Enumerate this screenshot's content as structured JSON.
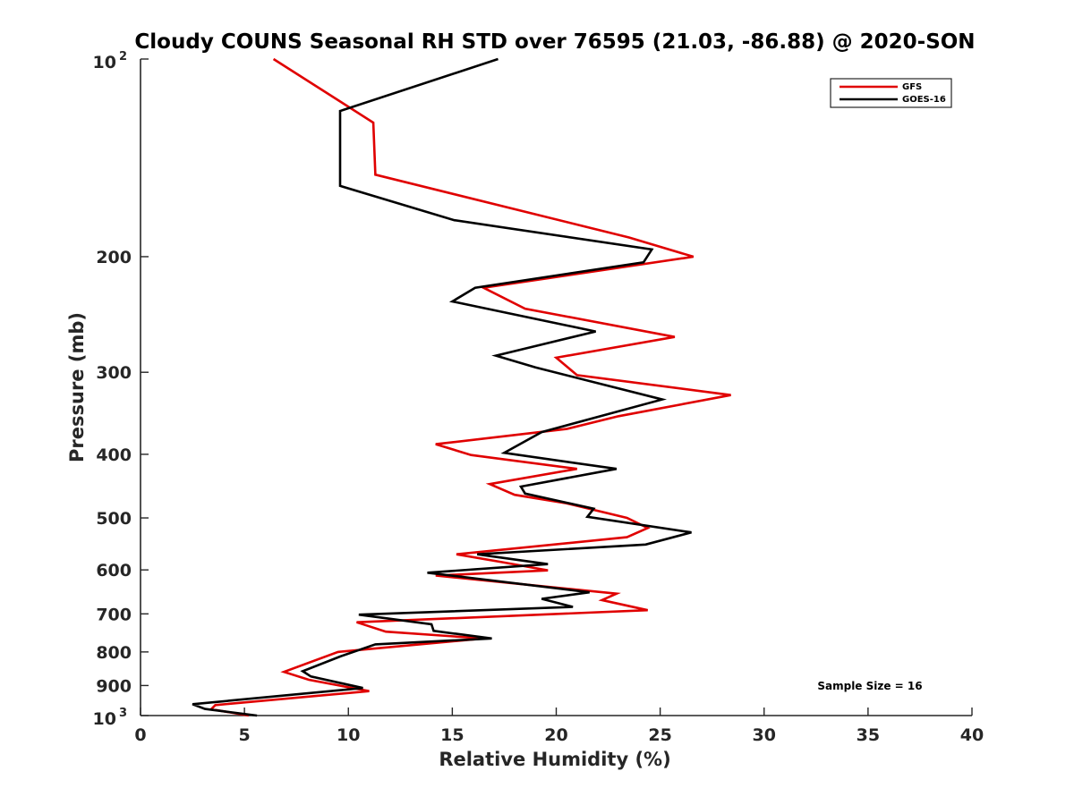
{
  "chart_data": {
    "type": "line",
    "title": "Cloudy COUNS Seasonal RH STD over 76595 (21.03, -86.88) @ 2020-SON",
    "xlabel": "Relative Humidity (%)",
    "ylabel": "Pressure (mb)",
    "xlim": [
      0,
      40
    ],
    "ylim": [
      100,
      1000
    ],
    "yscale": "log",
    "y_reversed": true,
    "xticks": [
      0,
      5,
      10,
      15,
      20,
      25,
      30,
      35,
      40
    ],
    "xtick_labels": [
      "0",
      "5",
      "10",
      "15",
      "20",
      "25",
      "30",
      "35",
      "40"
    ],
    "yticks": [
      200,
      300,
      400,
      500,
      600,
      700,
      800,
      900
    ],
    "ytick_labels": [
      "200",
      "300",
      "400",
      "500",
      "600",
      "700",
      "800",
      "900"
    ],
    "ytick_top": {
      "value": 100,
      "base": "10",
      "exp": "2"
    },
    "ytick_bottom": {
      "value": 1000,
      "base": "10",
      "exp": "3"
    },
    "legend": {
      "position": "top-right"
    },
    "annotation": "Sample Size = 16",
    "series": [
      {
        "name": "GFS",
        "color": "#e00000",
        "points": [
          [
            6.4,
            100
          ],
          [
            11.2,
            125
          ],
          [
            11.3,
            150
          ],
          [
            23.5,
            187
          ],
          [
            26.6,
            200
          ],
          [
            16.5,
            223
          ],
          [
            18.5,
            240
          ],
          [
            25.7,
            265
          ],
          [
            20.0,
            285
          ],
          [
            21.0,
            303
          ],
          [
            28.4,
            325
          ],
          [
            23.0,
            350
          ],
          [
            20.5,
            366
          ],
          [
            14.2,
            386
          ],
          [
            15.9,
            401
          ],
          [
            21.0,
            421
          ],
          [
            16.8,
            444
          ],
          [
            18.0,
            461
          ],
          [
            20.5,
            475
          ],
          [
            23.4,
            500
          ],
          [
            24.4,
            518
          ],
          [
            23.4,
            535
          ],
          [
            15.2,
            568
          ],
          [
            17.4,
            584
          ],
          [
            19.6,
            601
          ],
          [
            14.2,
            612
          ],
          [
            22.9,
            652
          ],
          [
            22.2,
            667
          ],
          [
            24.4,
            691
          ],
          [
            10.4,
            721
          ],
          [
            11.8,
            745
          ],
          [
            16.5,
            763
          ],
          [
            9.5,
            800
          ],
          [
            6.9,
            858
          ],
          [
            8.1,
            882
          ],
          [
            11.0,
            918
          ],
          [
            3.6,
            964
          ],
          [
            3.4,
            978
          ],
          [
            5.2,
            1000
          ]
        ]
      },
      {
        "name": "GOES-16",
        "color": "#000000",
        "points": [
          [
            17.2,
            100
          ],
          [
            9.6,
            120
          ],
          [
            9.6,
            156
          ],
          [
            15.1,
            176
          ],
          [
            24.6,
            195
          ],
          [
            24.2,
            204
          ],
          [
            16.1,
            223
          ],
          [
            15.0,
            234
          ],
          [
            21.9,
            260
          ],
          [
            17.1,
            283
          ],
          [
            19.0,
            295
          ],
          [
            25.1,
            330
          ],
          [
            19.3,
            370
          ],
          [
            17.5,
            398
          ],
          [
            22.9,
            421
          ],
          [
            18.3,
            448
          ],
          [
            18.5,
            459
          ],
          [
            21.8,
            484
          ],
          [
            21.5,
            498
          ],
          [
            26.5,
            526
          ],
          [
            24.3,
            549
          ],
          [
            16.2,
            568
          ],
          [
            19.6,
            588
          ],
          [
            13.8,
            606
          ],
          [
            21.6,
            649
          ],
          [
            19.3,
            664
          ],
          [
            20.8,
            683
          ],
          [
            10.5,
            702
          ],
          [
            14.0,
            726
          ],
          [
            14.1,
            743
          ],
          [
            16.9,
            763
          ],
          [
            11.3,
            779
          ],
          [
            9.6,
            813
          ],
          [
            7.8,
            856
          ],
          [
            8.2,
            872
          ],
          [
            10.7,
            908
          ],
          [
            2.5,
            961
          ],
          [
            3.1,
            977
          ],
          [
            5.6,
            1000
          ]
        ]
      }
    ]
  }
}
